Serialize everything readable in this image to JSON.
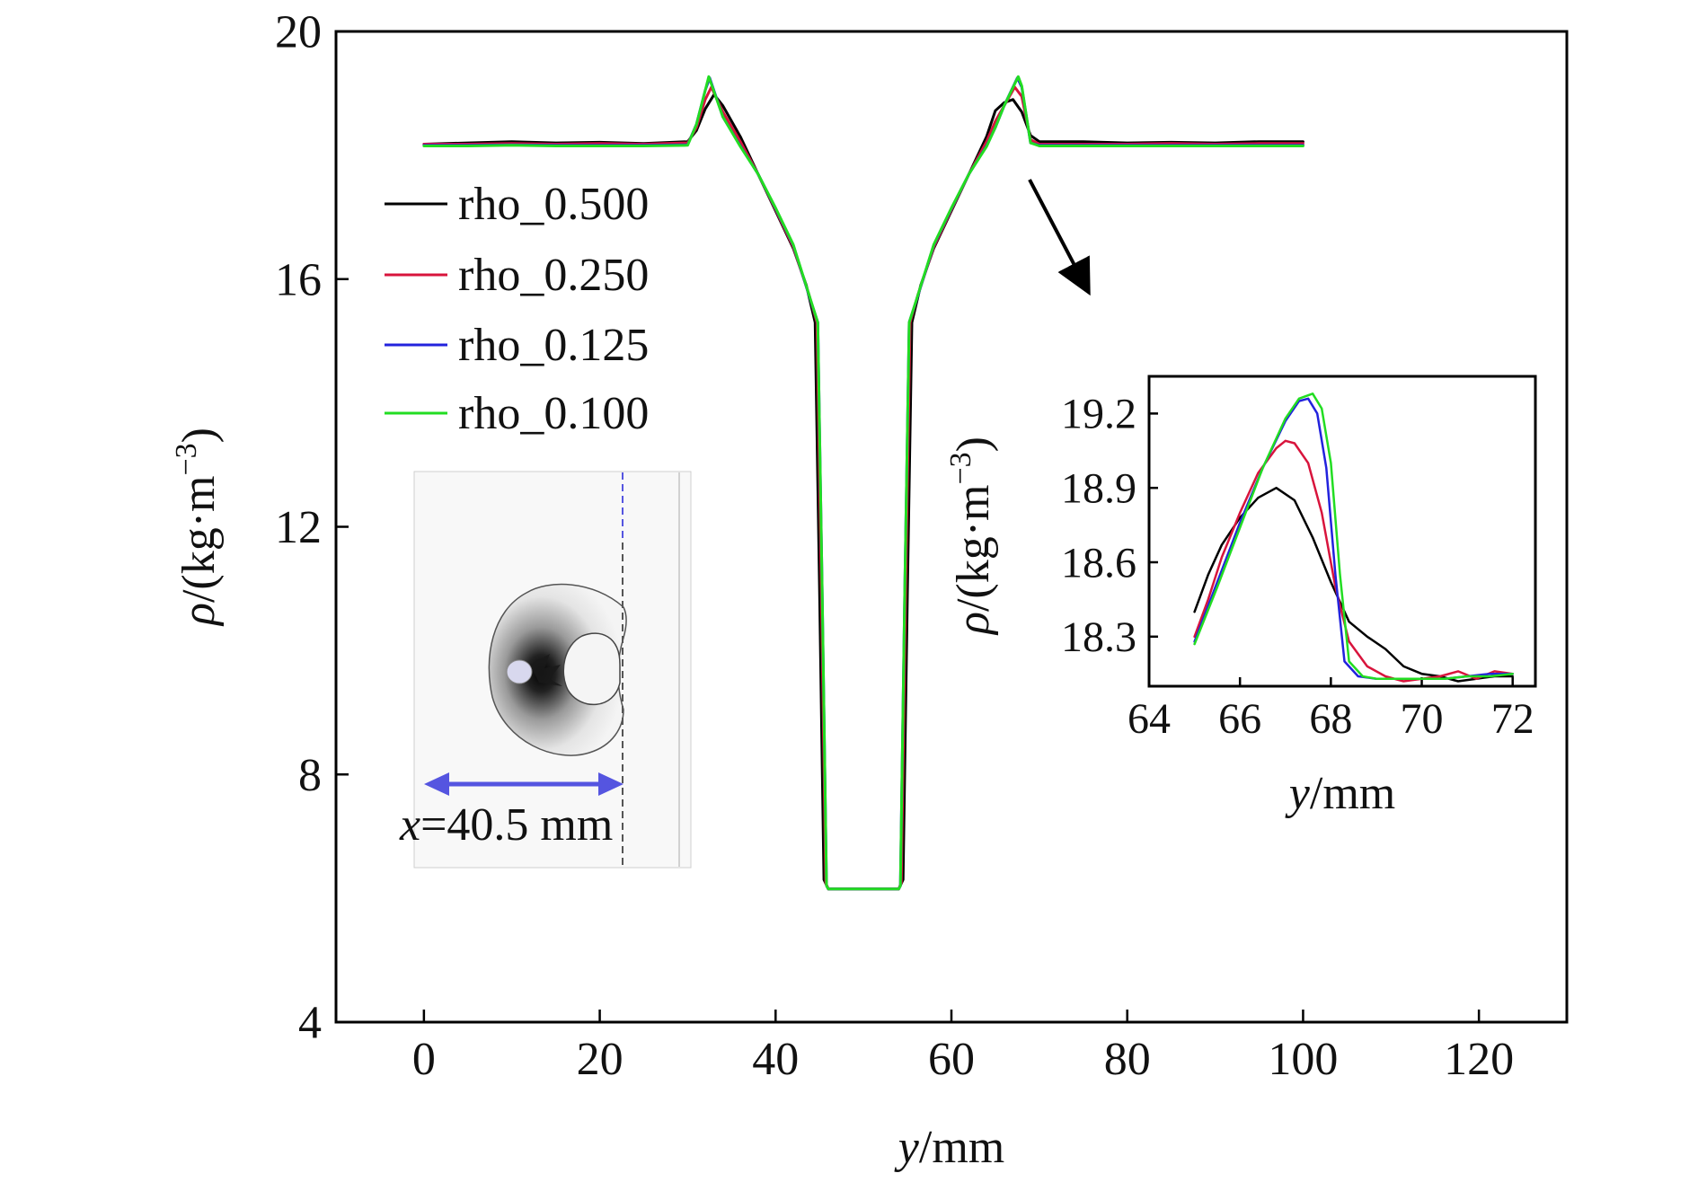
{
  "chart_data": [
    {
      "type": "line",
      "title": "",
      "xlabel_italic": "y",
      "xlabel_unit": "/mm",
      "ylabel_italic": "ρ",
      "ylabel_unit": "/(kg·m",
      "ylabel_exp": "−3",
      "ylabel_close": ")",
      "xlim": [
        -10,
        130
      ],
      "ylim": [
        4,
        20
      ],
      "xticks": [
        0,
        20,
        40,
        60,
        80,
        100,
        120
      ],
      "yticks": [
        4,
        8,
        12,
        16,
        20
      ],
      "legend_position": "top-left",
      "series": [
        {
          "name": "rho_0.500",
          "color": "#000000",
          "x": [
            0,
            5,
            10,
            15,
            20,
            25,
            30,
            31,
            32,
            33,
            34,
            36,
            38,
            40,
            42,
            43.5,
            44.5,
            45.0,
            45.5,
            46,
            50,
            54,
            54.5,
            55.0,
            55.5,
            56.5,
            58,
            60,
            62,
            64,
            65,
            66,
            67,
            68,
            69,
            70,
            75,
            80,
            85,
            90,
            95,
            100
          ],
          "y": [
            18.18,
            18.2,
            18.22,
            18.2,
            18.21,
            18.19,
            18.22,
            18.4,
            18.75,
            18.98,
            18.8,
            18.3,
            17.7,
            17.1,
            16.5,
            15.9,
            15.3,
            11.0,
            6.3,
            6.15,
            6.15,
            6.15,
            6.3,
            11.0,
            15.3,
            15.9,
            16.5,
            17.1,
            17.7,
            18.3,
            18.72,
            18.85,
            18.9,
            18.7,
            18.32,
            18.22,
            18.22,
            18.2,
            18.21,
            18.2,
            18.22,
            18.22
          ]
        },
        {
          "name": "rho_0.250",
          "color": "#d8143c",
          "x": [
            0,
            5,
            10,
            15,
            20,
            25,
            30,
            31,
            32,
            32.7,
            34,
            36,
            38,
            40,
            42,
            43.8,
            44.7,
            45.2,
            45.7,
            46,
            50,
            54,
            54.3,
            54.8,
            55.3,
            56.2,
            58,
            60,
            62,
            64,
            65,
            66,
            67.2,
            68,
            69,
            70,
            75,
            80,
            85,
            90,
            95,
            100
          ],
          "y": [
            18.18,
            18.18,
            18.19,
            18.18,
            18.19,
            18.18,
            18.2,
            18.45,
            18.9,
            19.1,
            18.7,
            18.22,
            17.7,
            17.12,
            16.52,
            15.75,
            15.3,
            11.0,
            6.25,
            6.15,
            6.15,
            6.15,
            6.25,
            11.0,
            15.3,
            15.75,
            16.52,
            17.12,
            17.7,
            18.22,
            18.55,
            18.8,
            19.1,
            18.95,
            18.25,
            18.18,
            18.18,
            18.18,
            18.19,
            18.18,
            18.19,
            18.19
          ]
        },
        {
          "name": "rho_0.125",
          "color": "#2222dd",
          "x": [
            0,
            5,
            10,
            15,
            20,
            25,
            30,
            31,
            32,
            32.5,
            34,
            36,
            38,
            40,
            42,
            44,
            44.8,
            45.3,
            45.8,
            46,
            50,
            54,
            54.2,
            54.7,
            55.2,
            56,
            58,
            60,
            62,
            64,
            65,
            66,
            67.5,
            68,
            69,
            70,
            75,
            80,
            85,
            90,
            95,
            100
          ],
          "y": [
            18.16,
            18.16,
            18.17,
            18.16,
            18.16,
            18.16,
            18.17,
            18.5,
            19.05,
            19.25,
            18.62,
            18.15,
            17.7,
            17.14,
            16.55,
            15.65,
            15.3,
            11.0,
            6.2,
            6.15,
            6.15,
            6.15,
            6.2,
            11.0,
            15.3,
            15.65,
            16.55,
            17.14,
            17.7,
            18.15,
            18.45,
            18.8,
            19.25,
            19.1,
            18.2,
            18.16,
            18.16,
            18.16,
            18.16,
            18.16,
            18.16,
            18.16
          ]
        },
        {
          "name": "rho_0.100",
          "color": "#22dd22",
          "x": [
            0,
            5,
            10,
            15,
            20,
            25,
            30,
            31,
            32,
            32.4,
            34,
            36,
            38,
            40,
            42,
            44,
            44.8,
            45.3,
            45.8,
            46,
            50,
            54,
            54.2,
            54.7,
            55.2,
            56,
            58,
            60,
            62,
            64,
            65,
            66,
            67.6,
            68,
            69,
            70,
            75,
            80,
            85,
            90,
            95,
            100
          ],
          "y": [
            18.15,
            18.15,
            18.16,
            18.15,
            18.15,
            18.15,
            18.16,
            18.5,
            19.05,
            19.27,
            18.62,
            18.14,
            17.7,
            17.15,
            16.56,
            15.66,
            15.3,
            11.0,
            6.2,
            6.15,
            6.15,
            6.15,
            6.2,
            11.0,
            15.3,
            15.66,
            16.56,
            17.15,
            17.7,
            18.14,
            18.45,
            18.8,
            19.27,
            19.12,
            18.2,
            18.15,
            18.15,
            18.15,
            18.15,
            18.15,
            18.15,
            18.15
          ]
        }
      ]
    },
    {
      "type": "line",
      "title": "",
      "xlabel_italic": "y",
      "xlabel_unit": "/mm",
      "ylabel_italic": "ρ",
      "ylabel_unit": "/(kg·m",
      "ylabel_exp": "−3",
      "ylabel_close": ")",
      "xlim": [
        64,
        72.5
      ],
      "ylim": [
        18.1,
        19.35
      ],
      "xticks": [
        64,
        66,
        68,
        70,
        72
      ],
      "yticks": [
        18.3,
        18.6,
        18.9,
        19.2
      ],
      "series": [
        {
          "name": "rho_0.500",
          "color": "#000000",
          "x": [
            65.0,
            65.3,
            65.6,
            66.0,
            66.4,
            66.8,
            67.2,
            67.6,
            68.0,
            68.4,
            68.8,
            69.2,
            69.6,
            70.0,
            70.4,
            70.8,
            71.2,
            71.6,
            72.0
          ],
          "y": [
            18.4,
            18.55,
            18.67,
            18.78,
            18.86,
            18.9,
            18.85,
            18.7,
            18.52,
            18.36,
            18.3,
            18.25,
            18.18,
            18.15,
            18.14,
            18.12,
            18.13,
            18.14,
            18.14
          ]
        },
        {
          "name": "rho_0.250",
          "color": "#d8143c",
          "x": [
            65.0,
            65.3,
            65.6,
            66.0,
            66.4,
            66.8,
            67.0,
            67.2,
            67.5,
            67.8,
            68.1,
            68.4,
            68.8,
            69.2,
            69.6,
            70.0,
            70.4,
            70.8,
            71.2,
            71.6,
            72.0
          ],
          "y": [
            18.3,
            18.45,
            18.62,
            18.8,
            18.96,
            19.06,
            19.09,
            19.08,
            19.0,
            18.8,
            18.5,
            18.28,
            18.18,
            18.14,
            18.12,
            18.13,
            18.14,
            18.16,
            18.13,
            18.16,
            18.15
          ]
        },
        {
          "name": "rho_0.125",
          "color": "#2222dd",
          "x": [
            65.0,
            65.5,
            66.0,
            66.5,
            67.0,
            67.3,
            67.5,
            67.7,
            67.9,
            68.1,
            68.3,
            68.6,
            69.0,
            69.5,
            70.0,
            70.5,
            71.0,
            71.5,
            72.0
          ],
          "y": [
            18.28,
            18.52,
            18.76,
            18.98,
            19.17,
            19.25,
            19.26,
            19.2,
            18.98,
            18.55,
            18.2,
            18.14,
            18.13,
            18.13,
            18.13,
            18.13,
            18.14,
            18.15,
            18.15
          ]
        },
        {
          "name": "rho_0.100",
          "color": "#22dd22",
          "x": [
            65.0,
            65.5,
            66.0,
            66.5,
            67.0,
            67.3,
            67.6,
            67.8,
            68.0,
            68.2,
            68.4,
            68.7,
            69.0,
            69.5,
            70.0,
            70.5,
            71.0,
            71.5,
            72.0
          ],
          "y": [
            18.27,
            18.5,
            18.74,
            18.98,
            19.18,
            19.26,
            19.28,
            19.22,
            19.0,
            18.55,
            18.2,
            18.14,
            18.13,
            18.13,
            18.13,
            18.13,
            18.14,
            18.14,
            18.15
          ]
        }
      ]
    }
  ],
  "schematic": {
    "measure_prefix": "x",
    "measure_value": "=40.5 mm",
    "arrow_color": "#5555e0"
  },
  "colors": {
    "rho_0.500": "#000000",
    "rho_0.250": "#d8143c",
    "rho_0.125": "#2222dd",
    "rho_0.100": "#22dd22"
  }
}
